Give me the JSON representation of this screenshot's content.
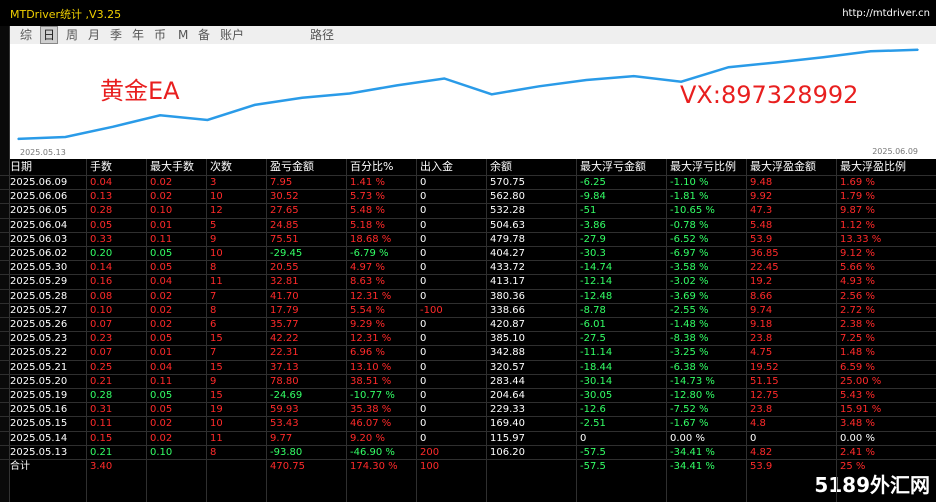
{
  "window": {
    "title": "MTDriver统计 ,V3.25",
    "url": "http://mtdriver.cn"
  },
  "tabs": [
    "综",
    "日",
    "周",
    "月",
    "季",
    "年",
    "币",
    "M",
    "备",
    "账户",
    "路径"
  ],
  "active_tab": "日",
  "chart": {
    "overlay_left": "黄金EA",
    "overlay_right": "VX:897328992",
    "x_start_label": "2025.05.13",
    "x_end_label": "2025.06.09",
    "line_color": "#2a9be8",
    "label_color": "#e81f1f"
  },
  "chart_data": {
    "type": "line",
    "x": [
      "2025.05.13",
      "2025.05.14",
      "2025.05.15",
      "2025.05.16",
      "2025.05.19",
      "2025.05.20",
      "2025.05.21",
      "2025.05.22",
      "2025.05.23",
      "2025.05.26",
      "2025.05.27",
      "2025.05.28",
      "2025.05.29",
      "2025.05.30",
      "2025.06.02",
      "2025.06.03",
      "2025.06.04",
      "2025.06.05",
      "2025.06.06",
      "2025.06.09"
    ],
    "series": [
      {
        "values": [
          106.2,
          115.97,
          169.4,
          229.33,
          204.64,
          283.44,
          320.57,
          342.88,
          385.1,
          420.87,
          338.66,
          380.36,
          413.17,
          433.72,
          404.27,
          479.78,
          504.63,
          532.28,
          562.8,
          570.75
        ]
      }
    ]
  },
  "table": {
    "headers": [
      "日期",
      "手数",
      "最大手数",
      "次数",
      "盈亏金额",
      "百分比%",
      "出入金",
      "余额",
      "最大浮亏金额",
      "最大浮亏比例",
      "最大浮盈金额",
      "最大浮盈比例"
    ],
    "rows": [
      [
        "2025.06.09",
        "0.04",
        "0.02",
        "3",
        "7.95",
        "1.41 %",
        "0",
        "570.75",
        "-6.25",
        "-1.10 %",
        "9.48",
        "1.69 %"
      ],
      [
        "2025.06.06",
        "0.13",
        "0.02",
        "10",
        "30.52",
        "5.73 %",
        "0",
        "562.80",
        "-9.84",
        "-1.81 %",
        "9.92",
        "1.79 %"
      ],
      [
        "2025.06.05",
        "0.28",
        "0.10",
        "12",
        "27.65",
        "5.48 %",
        "0",
        "532.28",
        "-51",
        "-10.65 %",
        "47.3",
        "9.87 %"
      ],
      [
        "2025.06.04",
        "0.05",
        "0.01",
        "5",
        "24.85",
        "5.18 %",
        "0",
        "504.63",
        "-3.86",
        "-0.78 %",
        "5.48",
        "1.12 %"
      ],
      [
        "2025.06.03",
        "0.33",
        "0.11",
        "9",
        "75.51",
        "18.68 %",
        "0",
        "479.78",
        "-27.9",
        "-6.52 %",
        "53.9",
        "13.33 %"
      ],
      [
        "2025.06.02",
        "0.20",
        "0.05",
        "10",
        "-29.45",
        "-6.79 %",
        "0",
        "404.27",
        "-30.3",
        "-6.97 %",
        "36.85",
        "9.12 %"
      ],
      [
        "2025.05.30",
        "0.14",
        "0.05",
        "8",
        "20.55",
        "4.97 %",
        "0",
        "433.72",
        "-14.74",
        "-3.58 %",
        "22.45",
        "5.66 %"
      ],
      [
        "2025.05.29",
        "0.16",
        "0.04",
        "11",
        "32.81",
        "8.63 %",
        "0",
        "413.17",
        "-12.14",
        "-3.02 %",
        "19.2",
        "4.93 %"
      ],
      [
        "2025.05.28",
        "0.08",
        "0.02",
        "7",
        "41.70",
        "12.31 %",
        "0",
        "380.36",
        "-12.48",
        "-3.69 %",
        "8.66",
        "2.56 %"
      ],
      [
        "2025.05.27",
        "0.10",
        "0.02",
        "8",
        "17.79",
        "5.54 %",
        "-100",
        "338.66",
        "-8.78",
        "-2.55 %",
        "9.74",
        "2.72 %"
      ],
      [
        "2025.05.26",
        "0.07",
        "0.02",
        "6",
        "35.77",
        "9.29 %",
        "0",
        "420.87",
        "-6.01",
        "-1.48 %",
        "9.18",
        "2.38 %"
      ],
      [
        "2025.05.23",
        "0.23",
        "0.05",
        "15",
        "42.22",
        "12.31 %",
        "0",
        "385.10",
        "-27.5",
        "-8.38 %",
        "23.8",
        "7.25 %"
      ],
      [
        "2025.05.22",
        "0.07",
        "0.01",
        "7",
        "22.31",
        "6.96 %",
        "0",
        "342.88",
        "-11.14",
        "-3.25 %",
        "4.75",
        "1.48 %"
      ],
      [
        "2025.05.21",
        "0.25",
        "0.04",
        "15",
        "37.13",
        "13.10 %",
        "0",
        "320.57",
        "-18.44",
        "-6.38 %",
        "19.52",
        "6.59 %"
      ],
      [
        "2025.05.20",
        "0.21",
        "0.11",
        "9",
        "78.80",
        "38.51 %",
        "0",
        "283.44",
        "-30.14",
        "-14.73 %",
        "51.15",
        "25.00 %"
      ],
      [
        "2025.05.19",
        "0.28",
        "0.05",
        "15",
        "-24.69",
        "-10.77 %",
        "0",
        "204.64",
        "-30.05",
        "-12.80 %",
        "12.75",
        "5.43 %"
      ],
      [
        "2025.05.16",
        "0.31",
        "0.05",
        "19",
        "59.93",
        "35.38 %",
        "0",
        "229.33",
        "-12.6",
        "-7.52 %",
        "23.8",
        "15.91 %"
      ],
      [
        "2025.05.15",
        "0.11",
        "0.02",
        "10",
        "53.43",
        "46.07 %",
        "0",
        "169.40",
        "-2.51",
        "-1.67 %",
        "4.8",
        "3.48 %"
      ],
      [
        "2025.05.14",
        "0.15",
        "0.02",
        "11",
        "9.77",
        "9.20 %",
        "0",
        "115.97",
        "0",
        "0.00 %",
        "0",
        "0.00 %"
      ],
      [
        "2025.05.13",
        "0.21",
        "0.10",
        "8",
        "-93.80",
        "-46.90 %",
        "200",
        "106.20",
        "-57.5",
        "-34.41 %",
        "4.82",
        "2.41 %"
      ],
      [
        "合计",
        "3.40",
        "",
        "",
        "470.75",
        "174.30 %",
        "100",
        "",
        "-57.5",
        "-34.41 %",
        "53.9",
        "25 %"
      ]
    ]
  },
  "colors": {
    "positive": "#ff2a2a",
    "negative": "#33ff66",
    "neutral": "#ffffff"
  },
  "watermark": "5189外汇网"
}
